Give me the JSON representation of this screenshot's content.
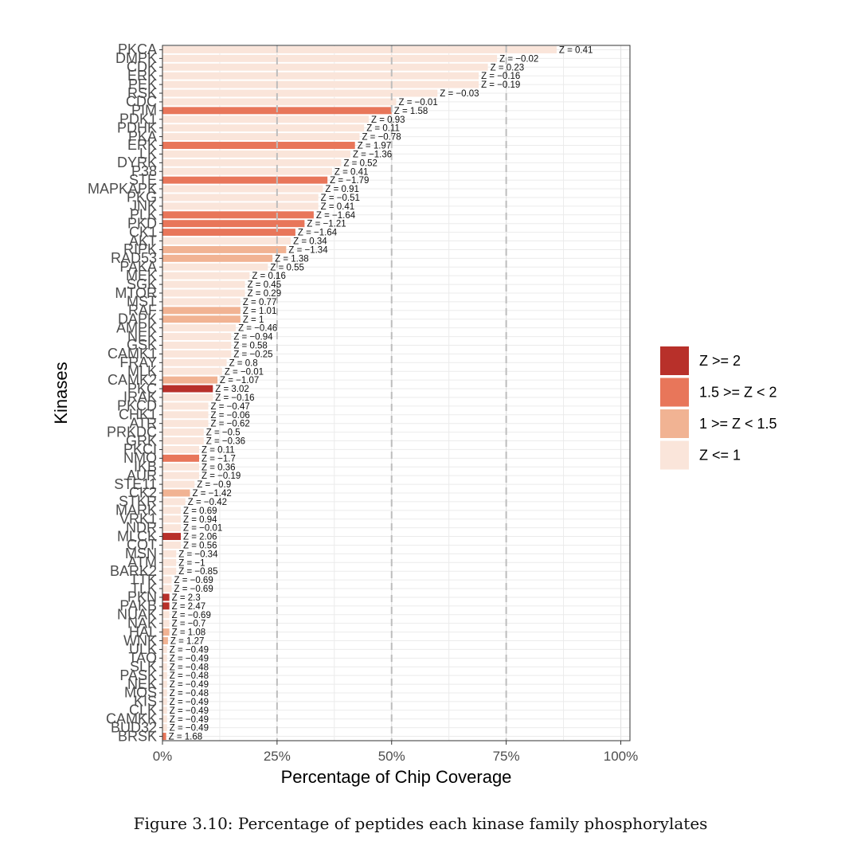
{
  "chart_data": {
    "type": "bar",
    "orientation": "horizontal",
    "xlabel": "Percentage of Chip Coverage",
    "ylabel": "Kinases",
    "xlim": [
      0,
      1
    ],
    "x_ticks": [
      "0%",
      "25%",
      "50%",
      "75%",
      "100%"
    ],
    "x_tick_values": [
      0,
      0.25,
      0.5,
      0.75,
      1.0
    ],
    "grid": true,
    "legend_position": "right",
    "legend": [
      {
        "label": "Z >= 2",
        "color": "#b8302a"
      },
      {
        "label": "1.5 >= Z < 2",
        "color": "#e8765a"
      },
      {
        "label": "1 >= Z < 1.5",
        "color": "#f1b393"
      },
      {
        "label": "Z <= 1",
        "color": "#fae5da"
      }
    ],
    "bars": [
      {
        "kinase": "PKCA",
        "value": 0.86,
        "z": "0.41",
        "cat": 3
      },
      {
        "kinase": "DMPK",
        "value": 0.73,
        "z": "−0.02",
        "cat": 3
      },
      {
        "kinase": "CDK",
        "value": 0.71,
        "z": "0.23",
        "cat": 3
      },
      {
        "kinase": "ERK",
        "value": 0.69,
        "z": "−0.16",
        "cat": 3
      },
      {
        "kinase": "PEK",
        "value": 0.69,
        "z": "−0.19",
        "cat": 3
      },
      {
        "kinase": "RSK",
        "value": 0.6,
        "z": "−0.03",
        "cat": 3
      },
      {
        "kinase": "CDC",
        "value": 0.51,
        "z": "−0.01",
        "cat": 3
      },
      {
        "kinase": "PIM",
        "value": 0.5,
        "z": "1.58",
        "cat": 1
      },
      {
        "kinase": "PDK1",
        "value": 0.45,
        "z": "0.93",
        "cat": 3
      },
      {
        "kinase": "PDHK",
        "value": 0.44,
        "z": "0.11",
        "cat": 3
      },
      {
        "kinase": "PKA",
        "value": 0.43,
        "z": "−0.78",
        "cat": 3
      },
      {
        "kinase": "ERK",
        "value": 0.42,
        "z": "1.97",
        "cat": 1
      },
      {
        "kinase": "LK",
        "value": 0.41,
        "z": "−1.36",
        "cat": 3
      },
      {
        "kinase": "DYRK",
        "value": 0.39,
        "z": "0.52",
        "cat": 3
      },
      {
        "kinase": "P38",
        "value": 0.37,
        "z": "0.41",
        "cat": 3
      },
      {
        "kinase": "STE",
        "value": 0.36,
        "z": "−1.79",
        "cat": 1
      },
      {
        "kinase": "MAPKAPK",
        "value": 0.35,
        "z": "0.91",
        "cat": 3
      },
      {
        "kinase": "PKG",
        "value": 0.34,
        "z": "−0.51",
        "cat": 3
      },
      {
        "kinase": "JNK",
        "value": 0.34,
        "z": "0.41",
        "cat": 3
      },
      {
        "kinase": "PLK",
        "value": 0.33,
        "z": "−1.64",
        "cat": 1
      },
      {
        "kinase": "PKD",
        "value": 0.31,
        "z": "−1.21",
        "cat": 1
      },
      {
        "kinase": "CK1",
        "value": 0.29,
        "z": "−1.64",
        "cat": 1
      },
      {
        "kinase": "AKT",
        "value": 0.28,
        "z": "0.34",
        "cat": 3
      },
      {
        "kinase": "RIPK",
        "value": 0.27,
        "z": "−1.34",
        "cat": 2
      },
      {
        "kinase": "RAD53",
        "value": 0.24,
        "z": "1.38",
        "cat": 2
      },
      {
        "kinase": "PAKA",
        "value": 0.23,
        "z": "0.55",
        "cat": 3
      },
      {
        "kinase": "MEK",
        "value": 0.19,
        "z": "0.16",
        "cat": 3
      },
      {
        "kinase": "SGK",
        "value": 0.18,
        "z": "0.45",
        "cat": 3
      },
      {
        "kinase": "MTOR",
        "value": 0.18,
        "z": "0.29",
        "cat": 3
      },
      {
        "kinase": "MST",
        "value": 0.17,
        "z": "0.77",
        "cat": 3
      },
      {
        "kinase": "RAF",
        "value": 0.17,
        "z": "1.01",
        "cat": 2
      },
      {
        "kinase": "DAPK",
        "value": 0.17,
        "z": "1",
        "cat": 2
      },
      {
        "kinase": "AMPK",
        "value": 0.16,
        "z": "−0.46",
        "cat": 3
      },
      {
        "kinase": "NEK",
        "value": 0.15,
        "z": "−0.94",
        "cat": 3
      },
      {
        "kinase": "GSK",
        "value": 0.15,
        "z": "0.58",
        "cat": 3
      },
      {
        "kinase": "CAMK1",
        "value": 0.15,
        "z": "−0.25",
        "cat": 3
      },
      {
        "kinase": "FRAY",
        "value": 0.14,
        "z": "0.8",
        "cat": 3
      },
      {
        "kinase": "MLK",
        "value": 0.13,
        "z": "−0.01",
        "cat": 3
      },
      {
        "kinase": "CAMK2",
        "value": 0.12,
        "z": "−1.07",
        "cat": 2
      },
      {
        "kinase": "PKC",
        "value": 0.11,
        "z": "3.02",
        "cat": 0
      },
      {
        "kinase": "IRAK",
        "value": 0.11,
        "z": "−0.16",
        "cat": 3
      },
      {
        "kinase": "PKCD",
        "value": 0.1,
        "z": "−0.47",
        "cat": 3
      },
      {
        "kinase": "CHK1",
        "value": 0.1,
        "z": "−0.06",
        "cat": 3
      },
      {
        "kinase": "ATR",
        "value": 0.1,
        "z": "−0.62",
        "cat": 3
      },
      {
        "kinase": "PRKDC",
        "value": 0.09,
        "z": "−0.5",
        "cat": 3
      },
      {
        "kinase": "GRK",
        "value": 0.09,
        "z": "−0.36",
        "cat": 3
      },
      {
        "kinase": "PKCI",
        "value": 0.08,
        "z": "0.11",
        "cat": 3
      },
      {
        "kinase": "NMO",
        "value": 0.08,
        "z": "−1.7",
        "cat": 1
      },
      {
        "kinase": "IKB",
        "value": 0.08,
        "z": "0.36",
        "cat": 3
      },
      {
        "kinase": "AUR",
        "value": 0.08,
        "z": "−0.19",
        "cat": 3
      },
      {
        "kinase": "STE11",
        "value": 0.07,
        "z": "−0.9",
        "cat": 3
      },
      {
        "kinase": "CK2",
        "value": 0.06,
        "z": "−1.42",
        "cat": 2
      },
      {
        "kinase": "STKR",
        "value": 0.05,
        "z": "−0.42",
        "cat": 3
      },
      {
        "kinase": "MARK",
        "value": 0.04,
        "z": "0.69",
        "cat": 3
      },
      {
        "kinase": "VRK1",
        "value": 0.04,
        "z": "0.94",
        "cat": 3
      },
      {
        "kinase": "NDR",
        "value": 0.04,
        "z": "−0.01",
        "cat": 3
      },
      {
        "kinase": "MLCK",
        "value": 0.04,
        "z": "2.06",
        "cat": 0
      },
      {
        "kinase": "COT",
        "value": 0.04,
        "z": "0.56",
        "cat": 3
      },
      {
        "kinase": "MSN",
        "value": 0.03,
        "z": "−0.34",
        "cat": 3
      },
      {
        "kinase": "ATM",
        "value": 0.03,
        "z": "−1",
        "cat": 3
      },
      {
        "kinase": "BARK2",
        "value": 0.03,
        "z": "−0.85",
        "cat": 3
      },
      {
        "kinase": "TTK",
        "value": 0.02,
        "z": "−0.69",
        "cat": 3
      },
      {
        "kinase": "TLK",
        "value": 0.02,
        "z": "−0.69",
        "cat": 3
      },
      {
        "kinase": "PKN",
        "value": 0.015,
        "z": "2.3",
        "cat": 0
      },
      {
        "kinase": "PAKB",
        "value": 0.015,
        "z": "2.47",
        "cat": 0
      },
      {
        "kinase": "NUAK",
        "value": 0.015,
        "z": "−0.69",
        "cat": 3
      },
      {
        "kinase": "NAK",
        "value": 0.015,
        "z": "−0.7",
        "cat": 3
      },
      {
        "kinase": "HAL",
        "value": 0.015,
        "z": "1.08",
        "cat": 2
      },
      {
        "kinase": "WNK",
        "value": 0.012,
        "z": "1.27",
        "cat": 2
      },
      {
        "kinase": "ULK",
        "value": 0.01,
        "z": "−0.49",
        "cat": 3
      },
      {
        "kinase": "TAO",
        "value": 0.01,
        "z": "−0.49",
        "cat": 3
      },
      {
        "kinase": "SLK",
        "value": 0.01,
        "z": "−0.48",
        "cat": 3
      },
      {
        "kinase": "PASK",
        "value": 0.01,
        "z": "−0.48",
        "cat": 3
      },
      {
        "kinase": "NEK",
        "value": 0.01,
        "z": "−0.49",
        "cat": 3
      },
      {
        "kinase": "MOS",
        "value": 0.01,
        "z": "−0.48",
        "cat": 3
      },
      {
        "kinase": "KIS",
        "value": 0.01,
        "z": "−0.49",
        "cat": 3
      },
      {
        "kinase": "CLK",
        "value": 0.01,
        "z": "−0.49",
        "cat": 3
      },
      {
        "kinase": "CAMKK",
        "value": 0.01,
        "z": "−0.49",
        "cat": 3
      },
      {
        "kinase": "BUD32",
        "value": 0.01,
        "z": "−0.49",
        "cat": 3
      },
      {
        "kinase": "BRSK",
        "value": 0.008,
        "z": "1.68",
        "cat": 1
      }
    ]
  },
  "caption": "Figure 3.10: Percentage of peptides each kinase family phosphorylates"
}
